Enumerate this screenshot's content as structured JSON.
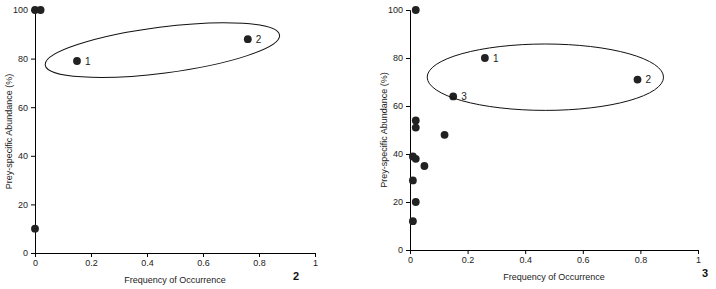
{
  "chart_data": [
    {
      "type": "scatter",
      "panel_label": "2",
      "x_label": "Frequency of Occurrence",
      "y_label": "Prey-specific Abundance (%)",
      "x": [
        0,
        0.02,
        0,
        0.15,
        0.76
      ],
      "values": [
        100,
        100,
        10,
        79,
        88
      ],
      "point_labels": [
        null,
        null,
        null,
        "1",
        "2"
      ],
      "color": "#222222",
      "marker": "circle",
      "xlim": [
        0,
        1
      ],
      "ylim": [
        0,
        100
      ],
      "xticks": [
        0,
        0.2,
        0.4,
        0.6,
        0.8,
        1
      ],
      "yticks": [
        0,
        20,
        40,
        60,
        80,
        100
      ]
    },
    {
      "type": "scatter",
      "panel_label": "3",
      "x_label": "Frequency of Occurrence",
      "y_label": "Prey-specific Abundance (%)",
      "x": [
        0.02,
        0.26,
        0.79,
        0.15,
        0.12,
        0.02,
        0.02,
        0.01,
        0.02,
        0.05,
        0.01,
        0.02,
        0.01
      ],
      "values": [
        100,
        80,
        71,
        64,
        48,
        54,
        51,
        39,
        38,
        35,
        29,
        20,
        12
      ],
      "point_labels": [
        null,
        "1",
        "2",
        "3",
        null,
        null,
        null,
        null,
        null,
        null,
        null,
        null,
        null
      ],
      "color": "#222222",
      "marker": "circle",
      "xlim": [
        0,
        1
      ],
      "ylim": [
        0,
        100
      ],
      "xticks": [
        0,
        0.2,
        0.4,
        0.6,
        0.8,
        1
      ],
      "yticks": [
        0,
        20,
        40,
        60,
        80,
        100
      ]
    }
  ]
}
